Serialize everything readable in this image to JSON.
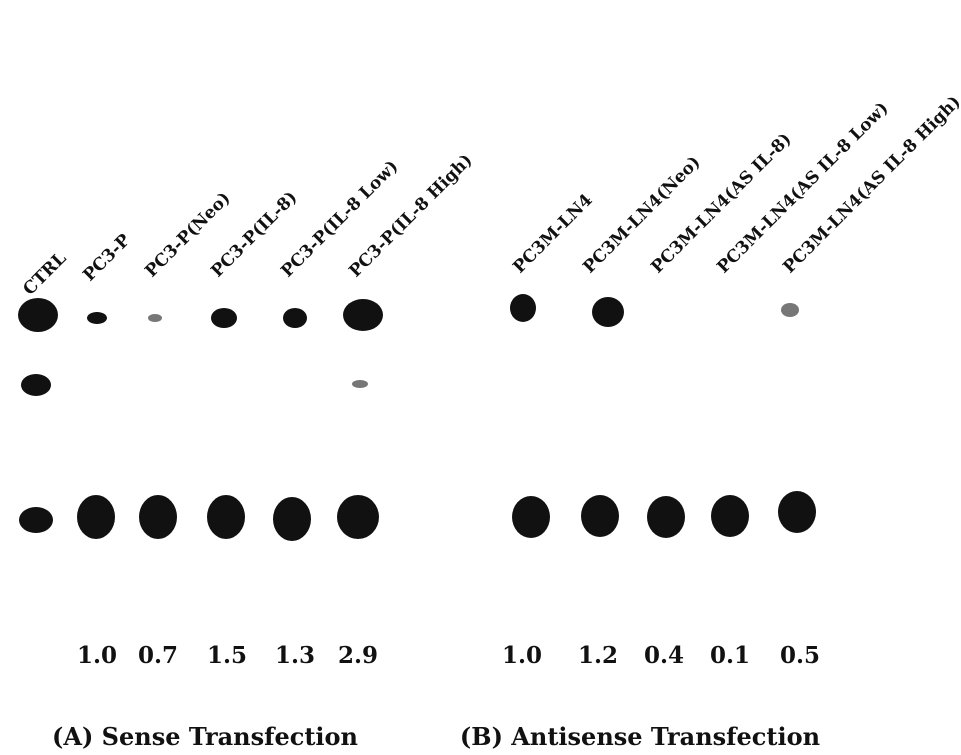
{
  "panels": [
    {
      "caption": "(A) Sense Transfection",
      "lanes": [
        "CTRL",
        "PC3-P",
        "PC3-P(Neo)",
        "PC3-P(IL-8)",
        "PC3-P(IL-8 Low)",
        "PC3-P(IL-8 High)"
      ],
      "ratios": [
        "1.0",
        "0.7",
        "1.5",
        "1.3",
        "2.9"
      ]
    },
    {
      "caption": "(B) Antisense Transfection",
      "lanes": [
        "PC3M-LN4",
        "PC3M-LN4(Neo)",
        "PC3M-LN4(AS IL-8)",
        "PC3M-LN4(AS IL-8 Low)",
        "PC3M-LN4(AS IL-8 High)"
      ],
      "ratios": [
        "1.0",
        "1.2",
        "0.4",
        "0.1",
        "0.5"
      ]
    }
  ]
}
